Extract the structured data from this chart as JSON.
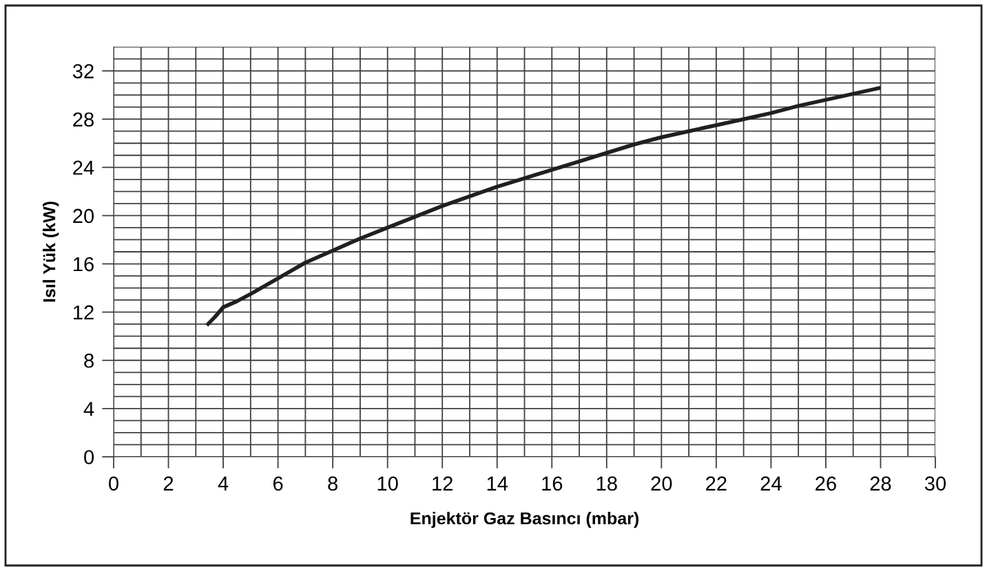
{
  "chart_data": {
    "type": "line",
    "xlabel": "Enjektör Gaz Basıncı (mbar)",
    "ylabel": "Isıl Yük (kW)",
    "x": [
      3.4,
      3.7,
      4,
      4.5,
      5,
      6,
      7,
      8,
      9,
      10,
      11,
      12,
      13,
      14,
      15,
      16,
      17,
      18,
      19,
      20,
      21,
      22,
      23,
      24,
      25,
      26,
      27,
      28
    ],
    "series": [
      {
        "color": "#231f20",
        "values": [
          10.9,
          11.6,
          12.4,
          12.9,
          13.5,
          14.8,
          16.1,
          17.1,
          18.1,
          19.0,
          19.9,
          20.8,
          21.6,
          22.4,
          23.1,
          23.8,
          24.5,
          25.2,
          25.9,
          26.5,
          27.0,
          27.5,
          28.0,
          28.5,
          29.1,
          29.6,
          30.1,
          30.6
        ]
      }
    ],
    "xlim": [
      0,
      30
    ],
    "ylim": [
      0,
      34
    ],
    "xticks": [
      0,
      2,
      4,
      6,
      8,
      10,
      12,
      14,
      16,
      18,
      20,
      22,
      24,
      26,
      28,
      30
    ],
    "yticks": [
      0,
      4,
      8,
      12,
      16,
      20,
      24,
      28,
      32
    ],
    "grid": true,
    "marker": "none",
    "line_style": "solid"
  }
}
